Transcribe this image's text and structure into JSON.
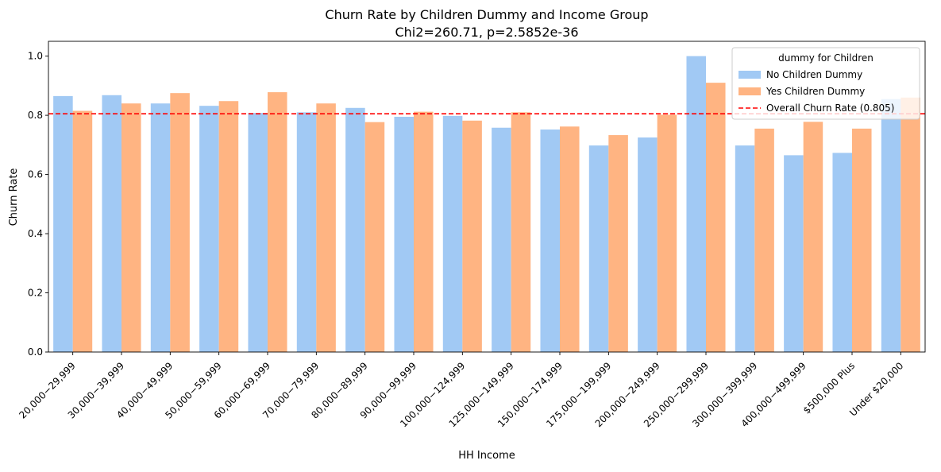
{
  "chart_data": {
    "type": "bar",
    "title": "Churn Rate by Children Dummy and Income Group",
    "subtitle": "Chi2=260.71, p=2.5852e-36",
    "xlabel": "HH Income",
    "ylabel": "Churn Rate",
    "ylim": [
      0,
      1.05
    ],
    "yticks": [
      "0.0",
      "0.2",
      "0.4",
      "0.6",
      "0.8",
      "1.0"
    ],
    "categories": [
      "20,000−29,999",
      "30,000−39,999",
      "40,000−49,999",
      "50,000−59,999",
      "60,000−69,999",
      "70,000−79,999",
      "80,000−89,999",
      "90,000−99,999",
      "100,000−124,999",
      "125,000−149,999",
      "150,000−174,999",
      "175,000−199,999",
      "200,000−249,999",
      "250,000−299,999",
      "300,000−399,999",
      "400,000−499,999",
      "$500,000 Plus",
      "Under $20,000"
    ],
    "series": [
      {
        "name": "No Children Dummy",
        "color": "#a1c9f4",
        "values": [
          0.865,
          0.868,
          0.84,
          0.832,
          0.808,
          0.81,
          0.825,
          0.795,
          0.798,
          0.758,
          0.752,
          0.698,
          0.725,
          1.0,
          0.698,
          0.665,
          0.673,
          0.855
        ]
      },
      {
        "name": "Yes Children Dummy",
        "color": "#ffb482",
        "values": [
          0.815,
          0.84,
          0.875,
          0.848,
          0.878,
          0.84,
          0.777,
          0.812,
          0.782,
          0.81,
          0.762,
          0.733,
          0.802,
          0.91,
          0.755,
          0.778,
          0.755,
          0.86
        ]
      }
    ],
    "reference_line": {
      "label": "Overall Churn Rate (0.805)",
      "value": 0.805,
      "color": "#ff0000",
      "style": "dashed"
    },
    "legend": {
      "title": "dummy for Children",
      "placement": "top-right"
    },
    "grid": false
  }
}
